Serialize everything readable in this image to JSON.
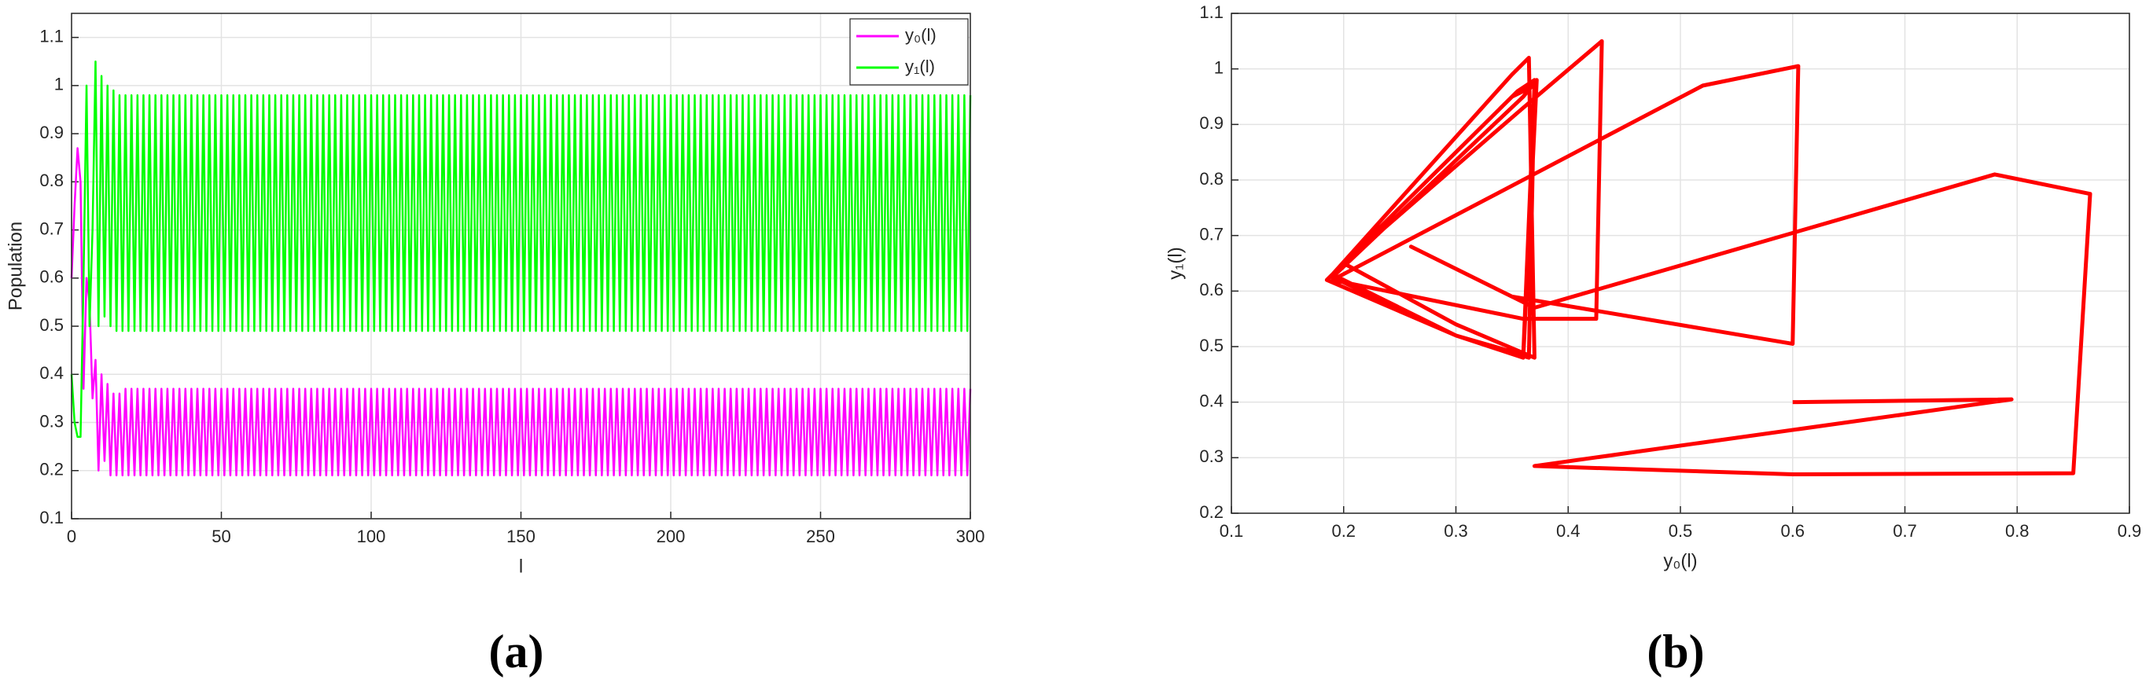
{
  "chart_data": [
    {
      "type": "line",
      "caption": "(a)",
      "xlabel": "l",
      "ylabel": "Population",
      "xlim": [
        0,
        300
      ],
      "xticks": [
        0,
        50,
        100,
        150,
        200,
        250,
        300
      ],
      "ylim": [
        0.1,
        1.15
      ],
      "yticks": [
        0.1,
        0.2,
        0.3,
        0.4,
        0.5,
        0.6,
        0.7,
        0.8,
        0.9,
        1,
        1.1
      ],
      "grid": true,
      "legend": "upper right",
      "x": [
        0,
        1,
        2,
        3,
        4,
        5,
        6,
        7,
        8,
        9,
        10,
        11,
        12,
        13,
        14,
        15,
        16,
        17,
        18,
        19,
        20,
        21,
        22,
        23,
        24,
        25,
        26,
        27,
        28,
        29,
        30,
        31,
        32,
        33,
        34,
        35,
        36,
        37,
        38,
        39,
        40,
        41,
        42,
        43,
        44,
        45,
        46,
        47,
        48,
        49,
        50,
        51,
        52,
        53,
        54,
        55,
        56,
        57,
        58,
        59,
        60,
        61,
        62,
        63,
        64,
        65,
        66,
        67,
        68,
        69,
        70,
        71,
        72,
        73,
        74,
        75,
        76,
        77,
        78,
        79,
        80,
        81,
        82,
        83,
        84,
        85,
        86,
        87,
        88,
        89,
        90,
        91,
        92,
        93,
        94,
        95,
        96,
        97,
        98,
        99,
        100,
        101,
        102,
        103,
        104,
        105,
        106,
        107,
        108,
        109,
        110,
        111,
        112,
        113,
        114,
        115,
        116,
        117,
        118,
        119,
        120,
        121,
        122,
        123,
        124,
        125,
        126,
        127,
        128,
        129,
        130,
        131,
        132,
        133,
        134,
        135,
        136,
        137,
        138,
        139,
        140,
        141,
        142,
        143,
        144,
        145,
        146,
        147,
        148,
        149,
        150,
        151,
        152,
        153,
        154,
        155,
        156,
        157,
        158,
        159,
        160,
        161,
        162,
        163,
        164,
        165,
        166,
        167,
        168,
        169,
        170,
        171,
        172,
        173,
        174,
        175,
        176,
        177,
        178,
        179,
        180,
        181,
        182,
        183,
        184,
        185,
        186,
        187,
        188,
        189,
        190,
        191,
        192,
        193,
        194,
        195,
        196,
        197,
        198,
        199,
        200,
        201,
        202,
        203,
        204,
        205,
        206,
        207,
        208,
        209,
        210,
        211,
        212,
        213,
        214,
        215,
        216,
        217,
        218,
        219,
        220,
        221,
        222,
        223,
        224,
        225,
        226,
        227,
        228,
        229,
        230,
        231,
        232,
        233,
        234,
        235,
        236,
        237,
        238,
        239,
        240,
        241,
        242,
        243,
        244,
        245,
        246,
        247,
        248,
        249,
        250,
        251,
        252,
        253,
        254,
        255,
        256,
        257,
        258,
        259,
        260,
        261,
        262,
        263,
        264,
        265,
        266,
        267,
        268,
        269,
        270,
        271,
        272,
        273,
        274,
        275,
        276,
        277,
        278,
        279,
        280,
        281,
        282,
        283,
        284,
        285,
        286,
        287,
        288,
        289,
        290,
        291,
        292,
        293,
        294,
        295,
        296,
        297,
        298,
        299,
        300
      ],
      "series": [
        {
          "name": "y₀(l)",
          "color": "#ff00ff",
          "values": [
            0.6,
            0.75,
            0.87,
            0.8,
            0.37,
            0.6,
            0.55,
            0.35,
            0.43,
            0.2,
            0.4,
            0.22,
            0.38,
            0.19,
            0.36,
            0.19,
            0.36,
            0.19,
            0.37,
            0.19,
            0.37,
            0.19,
            0.37,
            0.19,
            0.37,
            0.19,
            0.37,
            0.19,
            0.37,
            0.19,
            0.37,
            0.19,
            0.37,
            0.19,
            0.37,
            0.19,
            0.37,
            0.19,
            0.37,
            0.19,
            0.37,
            0.19,
            0.37,
            0.19,
            0.37,
            0.19,
            0.37,
            0.19,
            0.37,
            0.19,
            0.37,
            0.19,
            0.37,
            0.19,
            0.37,
            0.19,
            0.37,
            0.19,
            0.37,
            0.19,
            0.37,
            0.19,
            0.37,
            0.19,
            0.37,
            0.19,
            0.37,
            0.19,
            0.37,
            0.19,
            0.37,
            0.19,
            0.37,
            0.19,
            0.37,
            0.19,
            0.37,
            0.19,
            0.37,
            0.19,
            0.37,
            0.19,
            0.37,
            0.19,
            0.37,
            0.19,
            0.37,
            0.19,
            0.37,
            0.19,
            0.37,
            0.19,
            0.37,
            0.19,
            0.37,
            0.19,
            0.37,
            0.19,
            0.37,
            0.19,
            0.37,
            0.19,
            0.37,
            0.19,
            0.37,
            0.19,
            0.37,
            0.19,
            0.37,
            0.19,
            0.37,
            0.19,
            0.37,
            0.19,
            0.37,
            0.19,
            0.37,
            0.19,
            0.37,
            0.19,
            0.37,
            0.19,
            0.37,
            0.19,
            0.37,
            0.19,
            0.37,
            0.19,
            0.37,
            0.19,
            0.37,
            0.19,
            0.37,
            0.19,
            0.37,
            0.19,
            0.37,
            0.19,
            0.37,
            0.19,
            0.37,
            0.19,
            0.37,
            0.19,
            0.37,
            0.19,
            0.37,
            0.19,
            0.37,
            0.19,
            0.37,
            0.19,
            0.37,
            0.19,
            0.37,
            0.19,
            0.37,
            0.19,
            0.37,
            0.19,
            0.37,
            0.19,
            0.37,
            0.19,
            0.37,
            0.19,
            0.37,
            0.19,
            0.37,
            0.19,
            0.37,
            0.19,
            0.37,
            0.19,
            0.37,
            0.19,
            0.37,
            0.19,
            0.37,
            0.19,
            0.37,
            0.19,
            0.37,
            0.19,
            0.37,
            0.19,
            0.37,
            0.19,
            0.37,
            0.19,
            0.37,
            0.19,
            0.37,
            0.19,
            0.37,
            0.19,
            0.37,
            0.19,
            0.37,
            0.19,
            0.37,
            0.19,
            0.37,
            0.19,
            0.37,
            0.19,
            0.37,
            0.19,
            0.37,
            0.19,
            0.37,
            0.19,
            0.37,
            0.19,
            0.37,
            0.19,
            0.37,
            0.19,
            0.37,
            0.19,
            0.37,
            0.19,
            0.37,
            0.19,
            0.37,
            0.19,
            0.37,
            0.19,
            0.37,
            0.19,
            0.37,
            0.19,
            0.37,
            0.19,
            0.37,
            0.19,
            0.37,
            0.19,
            0.37,
            0.19,
            0.37,
            0.19,
            0.37,
            0.19,
            0.37,
            0.19,
            0.37,
            0.19,
            0.37,
            0.19,
            0.37,
            0.19,
            0.37,
            0.19,
            0.37,
            0.19,
            0.37,
            0.19,
            0.37,
            0.19,
            0.37,
            0.19,
            0.37,
            0.19,
            0.37,
            0.19,
            0.37,
            0.19,
            0.37,
            0.19,
            0.37,
            0.19,
            0.37,
            0.19,
            0.37,
            0.19,
            0.37,
            0.19,
            0.37,
            0.19,
            0.37,
            0.19,
            0.37,
            0.19,
            0.37,
            0.19,
            0.37,
            0.19,
            0.37,
            0.19,
            0.37,
            0.19,
            0.37,
            0.19,
            0.37,
            0.19,
            0.37,
            0.19,
            0.37,
            0.19,
            0.37
          ]
        },
        {
          "name": "y₁(l)",
          "color": "#00ff00",
          "values": [
            0.4,
            0.3,
            0.27,
            0.27,
            0.6,
            1.0,
            0.5,
            0.7,
            1.05,
            0.5,
            1.02,
            0.52,
            1.0,
            0.5,
            0.99,
            0.49,
            0.98,
            0.49,
            0.98,
            0.49,
            0.98,
            0.49,
            0.98,
            0.49,
            0.98,
            0.49,
            0.98,
            0.49,
            0.98,
            0.49,
            0.98,
            0.49,
            0.98,
            0.49,
            0.98,
            0.49,
            0.98,
            0.49,
            0.98,
            0.49,
            0.98,
            0.49,
            0.98,
            0.49,
            0.98,
            0.49,
            0.98,
            0.49,
            0.98,
            0.49,
            0.98,
            0.49,
            0.98,
            0.49,
            0.98,
            0.49,
            0.98,
            0.49,
            0.98,
            0.49,
            0.98,
            0.49,
            0.98,
            0.49,
            0.98,
            0.49,
            0.98,
            0.49,
            0.98,
            0.49,
            0.98,
            0.49,
            0.98,
            0.49,
            0.98,
            0.49,
            0.98,
            0.49,
            0.98,
            0.49,
            0.98,
            0.49,
            0.98,
            0.49,
            0.98,
            0.49,
            0.98,
            0.49,
            0.98,
            0.49,
            0.98,
            0.49,
            0.98,
            0.49,
            0.98,
            0.49,
            0.98,
            0.49,
            0.98,
            0.49,
            0.98,
            0.49,
            0.98,
            0.49,
            0.98,
            0.49,
            0.98,
            0.49,
            0.98,
            0.49,
            0.98,
            0.49,
            0.98,
            0.49,
            0.98,
            0.49,
            0.98,
            0.49,
            0.98,
            0.49,
            0.98,
            0.49,
            0.98,
            0.49,
            0.98,
            0.49,
            0.98,
            0.49,
            0.98,
            0.49,
            0.98,
            0.49,
            0.98,
            0.49,
            0.98,
            0.49,
            0.98,
            0.49,
            0.98,
            0.49,
            0.98,
            0.49,
            0.98,
            0.49,
            0.98,
            0.49,
            0.98,
            0.49,
            0.98,
            0.49,
            0.98,
            0.49,
            0.98,
            0.49,
            0.98,
            0.49,
            0.98,
            0.49,
            0.98,
            0.49,
            0.98,
            0.49,
            0.98,
            0.49,
            0.98,
            0.49,
            0.98,
            0.49,
            0.98,
            0.49,
            0.98,
            0.49,
            0.98,
            0.49,
            0.98,
            0.49,
            0.98,
            0.49,
            0.98,
            0.49,
            0.98,
            0.49,
            0.98,
            0.49,
            0.98,
            0.49,
            0.98,
            0.49,
            0.98,
            0.49,
            0.98,
            0.49,
            0.98,
            0.49,
            0.98,
            0.49,
            0.98,
            0.49,
            0.98,
            0.49,
            0.98,
            0.49,
            0.98,
            0.49,
            0.98,
            0.49,
            0.98,
            0.49,
            0.98,
            0.49,
            0.98,
            0.49,
            0.98,
            0.49,
            0.98,
            0.49,
            0.98,
            0.49,
            0.98,
            0.49,
            0.98,
            0.49,
            0.98,
            0.49,
            0.98,
            0.49,
            0.98,
            0.49,
            0.98,
            0.49,
            0.98,
            0.49,
            0.98,
            0.49,
            0.98,
            0.49,
            0.98,
            0.49,
            0.98,
            0.49,
            0.98,
            0.49,
            0.98,
            0.49,
            0.98,
            0.49,
            0.98,
            0.49,
            0.98,
            0.49,
            0.98,
            0.49,
            0.98,
            0.49,
            0.98,
            0.49,
            0.98,
            0.49,
            0.98,
            0.49,
            0.98,
            0.49,
            0.98,
            0.49,
            0.98,
            0.49,
            0.98,
            0.49,
            0.98,
            0.49,
            0.98,
            0.49,
            0.98,
            0.49,
            0.98,
            0.49,
            0.98,
            0.49,
            0.98,
            0.49,
            0.98,
            0.49,
            0.98,
            0.49,
            0.98,
            0.49,
            0.98,
            0.49,
            0.98,
            0.49,
            0.98,
            0.49,
            0.98,
            0.49,
            0.98,
            0.49,
            0.98,
            0.49,
            0.98,
            0.49,
            0.98
          ]
        }
      ]
    },
    {
      "type": "line",
      "caption": "(b)",
      "xlabel": "y₀(l)",
      "ylabel": "y₁(l)",
      "xlim": [
        0.1,
        0.9
      ],
      "xticks": [
        0.1,
        0.2,
        0.3,
        0.4,
        0.5,
        0.6,
        0.7,
        0.8,
        0.9
      ],
      "ylim": [
        0.2,
        1.1
      ],
      "yticks": [
        0.2,
        0.3,
        0.4,
        0.5,
        0.6,
        0.7,
        0.8,
        0.9,
        1,
        1.1
      ],
      "grid": true,
      "x": [
        0.6,
        0.795,
        0.37,
        0.6,
        0.85,
        0.865,
        0.78,
        0.37,
        0.26,
        0.35,
        0.6,
        0.605,
        0.52,
        0.19,
        0.36,
        0.425,
        0.43,
        0.36,
        0.2,
        0.3,
        0.37,
        0.365,
        0.35,
        0.19,
        0.3,
        0.36,
        0.372,
        0.36,
        0.19,
        0.3,
        0.365,
        0.37,
        0.355,
        0.185,
        0.3,
        0.36,
        0.37,
        0.35,
        0.19
      ],
      "series": [
        {
          "color": "#ff0000",
          "values": [
            0.4,
            0.405,
            0.285,
            0.27,
            0.272,
            0.775,
            0.81,
            0.57,
            0.68,
            0.59,
            0.505,
            1.005,
            0.97,
            0.62,
            0.55,
            0.55,
            1.05,
            0.93,
            0.65,
            0.54,
            0.48,
            1.02,
            0.99,
            0.63,
            0.52,
            0.48,
            0.98,
            0.95,
            0.625,
            0.52,
            0.48,
            0.98,
            0.96,
            0.62,
            0.52,
            0.485,
            0.97,
            0.95,
            0.63
          ]
        }
      ]
    }
  ]
}
